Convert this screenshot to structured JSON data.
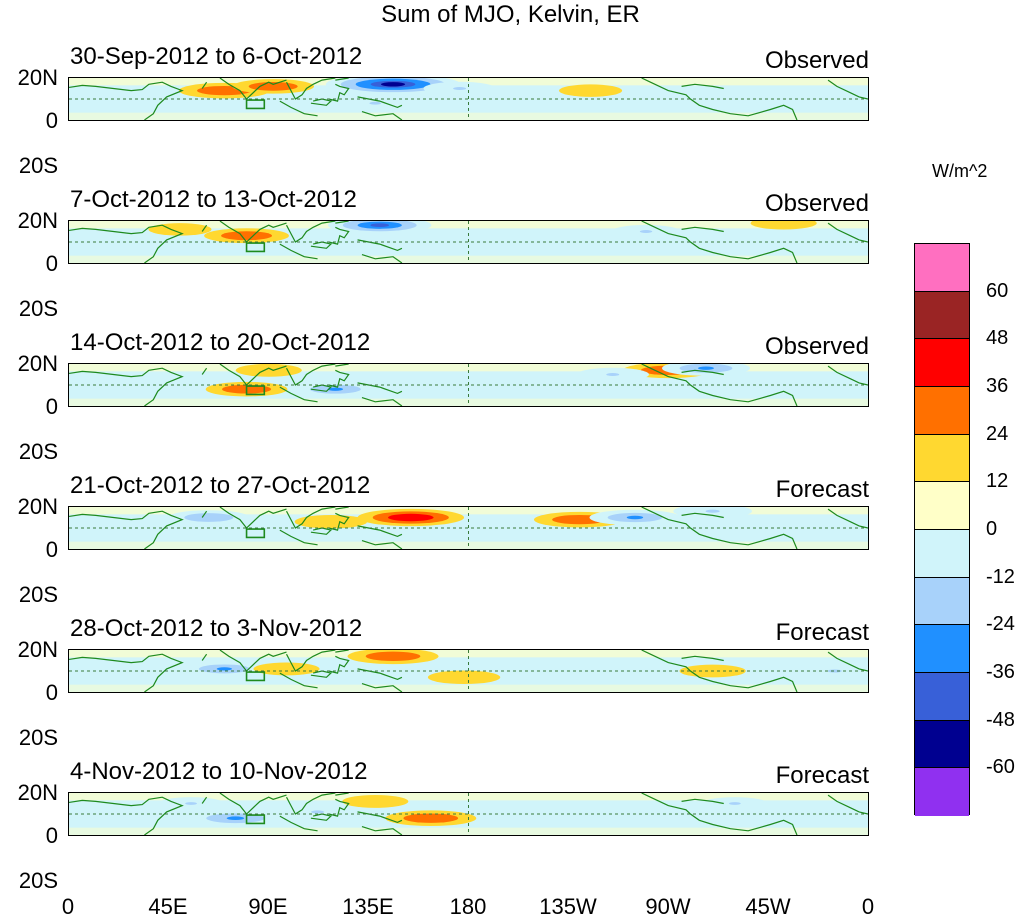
{
  "title": "Sum of MJO, Kelvin, ER",
  "units": "W/m^2",
  "lat_labels": [
    "20N",
    "0",
    "20S"
  ],
  "x_ticks": [
    "0",
    "45E",
    "90E",
    "135E",
    "180",
    "135W",
    "90W",
    "45W",
    "0"
  ],
  "panels": [
    {
      "date": "30-Sep-2012 to 6-Oct-2012",
      "kind": "Observed"
    },
    {
      "date": "7-Oct-2012 to 13-Oct-2012",
      "kind": "Observed"
    },
    {
      "date": "14-Oct-2012 to 20-Oct-2012",
      "kind": "Observed"
    },
    {
      "date": "21-Oct-2012 to 27-Oct-2012",
      "kind": "Forecast"
    },
    {
      "date": "28-Oct-2012 to 3-Nov-2012",
      "kind": "Forecast"
    },
    {
      "date": "4-Nov-2012 to 10-Nov-2012",
      "kind": "Forecast"
    }
  ],
  "colorbar": {
    "colors": [
      "#ff6fc0",
      "#9a2424",
      "#ff0000",
      "#ff7000",
      "#ffd830",
      "#ffffc8",
      "#d0f4fa",
      "#a8d2fa",
      "#2090ff",
      "#3860d8",
      "#000090",
      "#9030f0"
    ],
    "labels": [
      "60",
      "48",
      "36",
      "24",
      "12",
      "0",
      "-12",
      "-24",
      "-36",
      "-48",
      "-60"
    ]
  },
  "colors": {
    "coast": "#1e8a1e",
    "frame": "#000000"
  },
  "chart_data": {
    "type": "heatmap",
    "field": "OLR anomaly (sum of MJO, Kelvin, ER)",
    "lon_range": [
      0,
      360
    ],
    "lat_range": [
      -20,
      20
    ],
    "levels": [
      -60,
      -48,
      -36,
      -24,
      -12,
      0,
      12,
      24,
      36,
      48,
      60
    ],
    "anomalies": [
      [
        {
          "lon": 70,
          "lat": 8,
          "value": 30
        },
        {
          "lon": 92,
          "lat": 12,
          "value": 24
        },
        {
          "lon": 146,
          "lat": 14,
          "value": -58
        },
        {
          "lon": 176,
          "lat": 10,
          "value": -18
        },
        {
          "lon": 138,
          "lat": -4,
          "value": -14
        },
        {
          "lon": 235,
          "lat": 8,
          "value": 12
        }
      ],
      [
        {
          "lon": 80,
          "lat": 6,
          "value": 26
        },
        {
          "lon": 50,
          "lat": 12,
          "value": 12
        },
        {
          "lon": 140,
          "lat": 16,
          "value": -38
        },
        {
          "lon": 260,
          "lat": 10,
          "value": -16
        },
        {
          "lon": 322,
          "lat": 18,
          "value": 14
        }
      ],
      [
        {
          "lon": 80,
          "lat": -4,
          "value": 24
        },
        {
          "lon": 90,
          "lat": 14,
          "value": 14
        },
        {
          "lon": 120,
          "lat": -4,
          "value": -26
        },
        {
          "lon": 270,
          "lat": 14,
          "value": 30
        },
        {
          "lon": 287,
          "lat": 16,
          "value": -28
        },
        {
          "lon": 245,
          "lat": 10,
          "value": -18
        }
      ],
      [
        {
          "lon": 154,
          "lat": 10,
          "value": 40
        },
        {
          "lon": 230,
          "lat": 8,
          "value": 30
        },
        {
          "lon": 255,
          "lat": 10,
          "value": -30
        },
        {
          "lon": 63,
          "lat": 10,
          "value": -24
        },
        {
          "lon": 118,
          "lat": 6,
          "value": 18
        },
        {
          "lon": 290,
          "lat": 16,
          "value": -22
        }
      ],
      [
        {
          "lon": 146,
          "lat": 14,
          "value": 30
        },
        {
          "lon": 70,
          "lat": 2,
          "value": -26
        },
        {
          "lon": 98,
          "lat": 2,
          "value": 14
        },
        {
          "lon": 178,
          "lat": -6,
          "value": 18
        },
        {
          "lon": 290,
          "lat": 0,
          "value": 14
        },
        {
          "lon": 345,
          "lat": 0,
          "value": -22
        }
      ],
      [
        {
          "lon": 75,
          "lat": -4,
          "value": -34
        },
        {
          "lon": 163,
          "lat": -4,
          "value": 30
        },
        {
          "lon": 112,
          "lat": 2,
          "value": -18
        },
        {
          "lon": 55,
          "lat": 10,
          "value": -14
        },
        {
          "lon": 300,
          "lat": 10,
          "value": -14
        },
        {
          "lon": 138,
          "lat": 12,
          "value": 14
        }
      ]
    ]
  }
}
